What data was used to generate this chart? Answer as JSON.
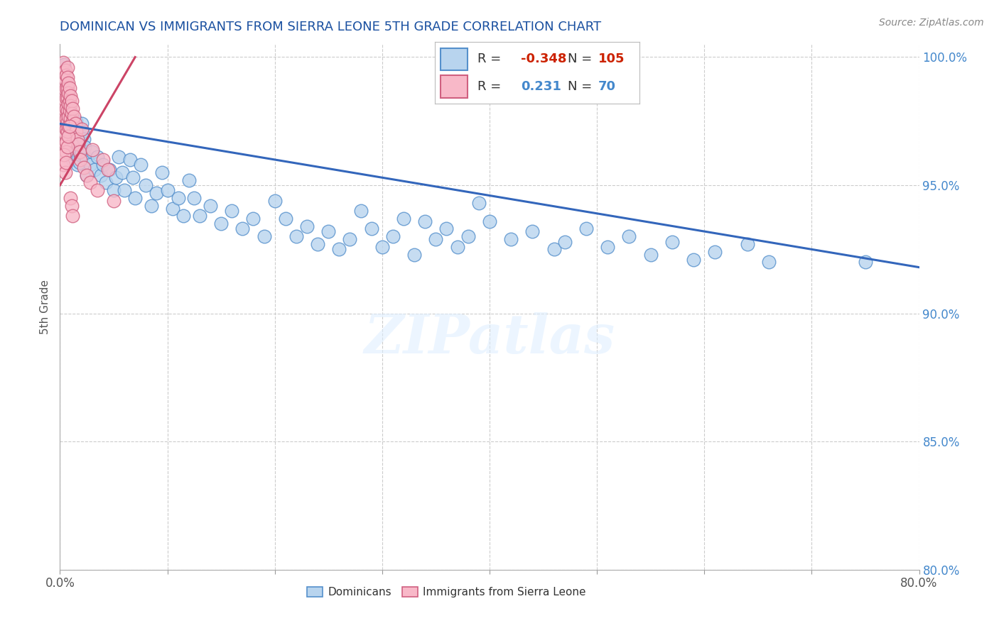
{
  "title": "DOMINICAN VS IMMIGRANTS FROM SIERRA LEONE 5TH GRADE CORRELATION CHART",
  "source": "Source: ZipAtlas.com",
  "ylabel": "5th Grade",
  "xlim": [
    0.0,
    0.8
  ],
  "ylim": [
    0.8,
    1.005
  ],
  "xtick_positions": [
    0.0,
    0.1,
    0.2,
    0.3,
    0.4,
    0.5,
    0.6,
    0.7,
    0.8
  ],
  "xticklabels": [
    "0.0%",
    "",
    "",
    "",
    "",
    "",
    "",
    "",
    "80.0%"
  ],
  "ytick_positions": [
    0.8,
    0.85,
    0.9,
    0.95,
    1.0
  ],
  "ytick_labels": [
    "80.0%",
    "85.0%",
    "90.0%",
    "95.0%",
    "100.0%"
  ],
  "r_blue": -0.348,
  "n_blue": 105,
  "r_pink": 0.231,
  "n_pink": 70,
  "blue_color": "#b8d4ee",
  "blue_edge_color": "#5590cc",
  "pink_color": "#f8b8c8",
  "pink_edge_color": "#d06080",
  "blue_line_color": "#3366bb",
  "pink_line_color": "#cc4466",
  "legend_label_blue": "Dominicans",
  "legend_label_pink": "Immigrants from Sierra Leone",
  "watermark": "ZIPatlas",
  "title_color": "#1a50a0",
  "blue_trend_x": [
    0.0,
    0.8
  ],
  "blue_trend_y": [
    0.974,
    0.918
  ],
  "pink_trend_x": [
    0.0,
    0.07
  ],
  "pink_trend_y": [
    0.95,
    1.0
  ],
  "blue_scatter": [
    [
      0.004,
      0.997
    ],
    [
      0.005,
      0.991
    ],
    [
      0.006,
      0.985
    ],
    [
      0.007,
      0.979
    ],
    [
      0.008,
      0.976
    ],
    [
      0.009,
      0.972
    ],
    [
      0.01,
      0.969
    ],
    [
      0.011,
      0.966
    ],
    [
      0.012,
      0.963
    ],
    [
      0.012,
      0.96
    ],
    [
      0.013,
      0.971
    ],
    [
      0.013,
      0.965
    ],
    [
      0.014,
      0.968
    ],
    [
      0.014,
      0.962
    ],
    [
      0.015,
      0.975
    ],
    [
      0.015,
      0.97
    ],
    [
      0.015,
      0.965
    ],
    [
      0.016,
      0.968
    ],
    [
      0.016,
      0.963
    ],
    [
      0.016,
      0.958
    ],
    [
      0.017,
      0.972
    ],
    [
      0.017,
      0.966
    ],
    [
      0.017,
      0.961
    ],
    [
      0.018,
      0.97
    ],
    [
      0.018,
      0.964
    ],
    [
      0.018,
      0.959
    ],
    [
      0.019,
      0.967
    ],
    [
      0.019,
      0.962
    ],
    [
      0.02,
      0.974
    ],
    [
      0.02,
      0.969
    ],
    [
      0.02,
      0.963
    ],
    [
      0.021,
      0.971
    ],
    [
      0.021,
      0.965
    ],
    [
      0.022,
      0.968
    ],
    [
      0.022,
      0.962
    ],
    [
      0.023,
      0.965
    ],
    [
      0.025,
      0.96
    ],
    [
      0.025,
      0.954
    ],
    [
      0.028,
      0.958
    ],
    [
      0.03,
      0.963
    ],
    [
      0.032,
      0.956
    ],
    [
      0.035,
      0.961
    ],
    [
      0.038,
      0.954
    ],
    [
      0.04,
      0.958
    ],
    [
      0.043,
      0.951
    ],
    [
      0.046,
      0.956
    ],
    [
      0.05,
      0.948
    ],
    [
      0.052,
      0.953
    ],
    [
      0.055,
      0.961
    ],
    [
      0.058,
      0.955
    ],
    [
      0.06,
      0.948
    ],
    [
      0.065,
      0.96
    ],
    [
      0.068,
      0.953
    ],
    [
      0.07,
      0.945
    ],
    [
      0.075,
      0.958
    ],
    [
      0.08,
      0.95
    ],
    [
      0.085,
      0.942
    ],
    [
      0.09,
      0.947
    ],
    [
      0.095,
      0.955
    ],
    [
      0.1,
      0.948
    ],
    [
      0.105,
      0.941
    ],
    [
      0.11,
      0.945
    ],
    [
      0.115,
      0.938
    ],
    [
      0.12,
      0.952
    ],
    [
      0.125,
      0.945
    ],
    [
      0.13,
      0.938
    ],
    [
      0.14,
      0.942
    ],
    [
      0.15,
      0.935
    ],
    [
      0.16,
      0.94
    ],
    [
      0.17,
      0.933
    ],
    [
      0.18,
      0.937
    ],
    [
      0.19,
      0.93
    ],
    [
      0.2,
      0.944
    ],
    [
      0.21,
      0.937
    ],
    [
      0.22,
      0.93
    ],
    [
      0.23,
      0.934
    ],
    [
      0.24,
      0.927
    ],
    [
      0.25,
      0.932
    ],
    [
      0.26,
      0.925
    ],
    [
      0.27,
      0.929
    ],
    [
      0.28,
      0.94
    ],
    [
      0.29,
      0.933
    ],
    [
      0.3,
      0.926
    ],
    [
      0.31,
      0.93
    ],
    [
      0.32,
      0.937
    ],
    [
      0.33,
      0.923
    ],
    [
      0.34,
      0.936
    ],
    [
      0.35,
      0.929
    ],
    [
      0.36,
      0.933
    ],
    [
      0.37,
      0.926
    ],
    [
      0.38,
      0.93
    ],
    [
      0.39,
      0.943
    ],
    [
      0.4,
      0.936
    ],
    [
      0.42,
      0.929
    ],
    [
      0.44,
      0.932
    ],
    [
      0.46,
      0.925
    ],
    [
      0.47,
      0.928
    ],
    [
      0.49,
      0.933
    ],
    [
      0.51,
      0.926
    ],
    [
      0.53,
      0.93
    ],
    [
      0.55,
      0.923
    ],
    [
      0.57,
      0.928
    ],
    [
      0.59,
      0.921
    ],
    [
      0.61,
      0.924
    ],
    [
      0.64,
      0.927
    ],
    [
      0.66,
      0.92
    ],
    [
      0.75,
      0.92
    ]
  ],
  "pink_scatter": [
    [
      0.003,
      0.998
    ],
    [
      0.003,
      0.994
    ],
    [
      0.004,
      0.99
    ],
    [
      0.004,
      0.986
    ],
    [
      0.004,
      0.982
    ],
    [
      0.004,
      0.978
    ],
    [
      0.004,
      0.974
    ],
    [
      0.005,
      0.995
    ],
    [
      0.005,
      0.991
    ],
    [
      0.005,
      0.987
    ],
    [
      0.005,
      0.983
    ],
    [
      0.005,
      0.979
    ],
    [
      0.005,
      0.975
    ],
    [
      0.005,
      0.97
    ],
    [
      0.005,
      0.966
    ],
    [
      0.006,
      0.993
    ],
    [
      0.006,
      0.988
    ],
    [
      0.006,
      0.984
    ],
    [
      0.006,
      0.98
    ],
    [
      0.006,
      0.976
    ],
    [
      0.006,
      0.972
    ],
    [
      0.006,
      0.967
    ],
    [
      0.006,
      0.963
    ],
    [
      0.007,
      0.996
    ],
    [
      0.007,
      0.992
    ],
    [
      0.007,
      0.988
    ],
    [
      0.007,
      0.984
    ],
    [
      0.007,
      0.979
    ],
    [
      0.007,
      0.975
    ],
    [
      0.007,
      0.971
    ],
    [
      0.008,
      0.99
    ],
    [
      0.008,
      0.986
    ],
    [
      0.008,
      0.982
    ],
    [
      0.008,
      0.977
    ],
    [
      0.008,
      0.973
    ],
    [
      0.009,
      0.988
    ],
    [
      0.009,
      0.983
    ],
    [
      0.009,
      0.979
    ],
    [
      0.01,
      0.985
    ],
    [
      0.01,
      0.981
    ],
    [
      0.01,
      0.976
    ],
    [
      0.011,
      0.983
    ],
    [
      0.011,
      0.978
    ],
    [
      0.012,
      0.98
    ],
    [
      0.012,
      0.975
    ],
    [
      0.013,
      0.977
    ],
    [
      0.014,
      0.974
    ],
    [
      0.015,
      0.971
    ],
    [
      0.016,
      0.968
    ],
    [
      0.017,
      0.966
    ],
    [
      0.018,
      0.963
    ],
    [
      0.019,
      0.96
    ],
    [
      0.02,
      0.972
    ],
    [
      0.022,
      0.957
    ],
    [
      0.025,
      0.954
    ],
    [
      0.028,
      0.951
    ],
    [
      0.03,
      0.964
    ],
    [
      0.035,
      0.948
    ],
    [
      0.04,
      0.96
    ],
    [
      0.045,
      0.956
    ],
    [
      0.05,
      0.944
    ],
    [
      0.003,
      0.958
    ],
    [
      0.004,
      0.962
    ],
    [
      0.005,
      0.955
    ],
    [
      0.006,
      0.959
    ],
    [
      0.007,
      0.965
    ],
    [
      0.008,
      0.969
    ],
    [
      0.009,
      0.973
    ],
    [
      0.01,
      0.945
    ],
    [
      0.011,
      0.942
    ],
    [
      0.012,
      0.938
    ]
  ]
}
